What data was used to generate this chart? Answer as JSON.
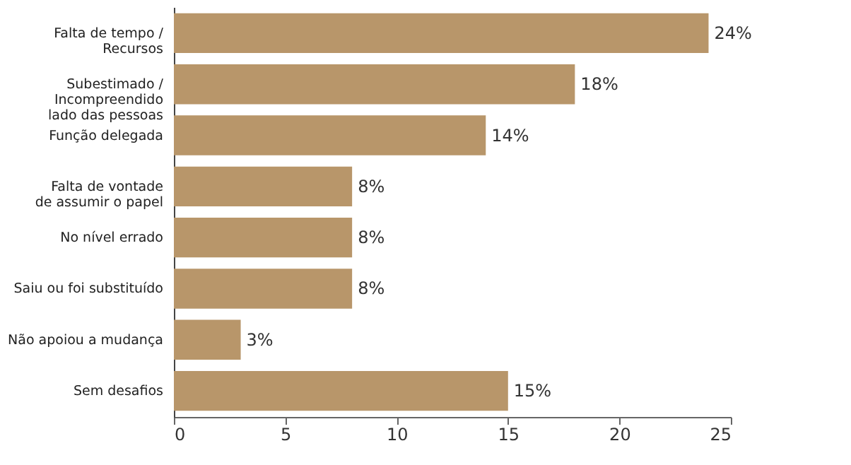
{
  "chart_data": {
    "type": "bar",
    "orientation": "horizontal",
    "categories": [
      "Falta de tempo /\nRecursos",
      "Subestimado /\nIncompreendido\nlado das pessoas",
      "Função delegada",
      "Falta de vontade\nde assumir o papel",
      "No nível errado",
      "Saiu ou foi substituído",
      "Não apoiou a mudança",
      "Sem desafios"
    ],
    "values": [
      24,
      18,
      14,
      8,
      8,
      8,
      3,
      15
    ],
    "value_labels": [
      "24%",
      "18%",
      "14%",
      "8%",
      "8%",
      "8%",
      "3%",
      "15%"
    ],
    "color": "#b8966a",
    "xlim": [
      0,
      25
    ],
    "xticks": [
      0,
      5,
      10,
      15,
      20,
      25
    ],
    "grid": false
  }
}
